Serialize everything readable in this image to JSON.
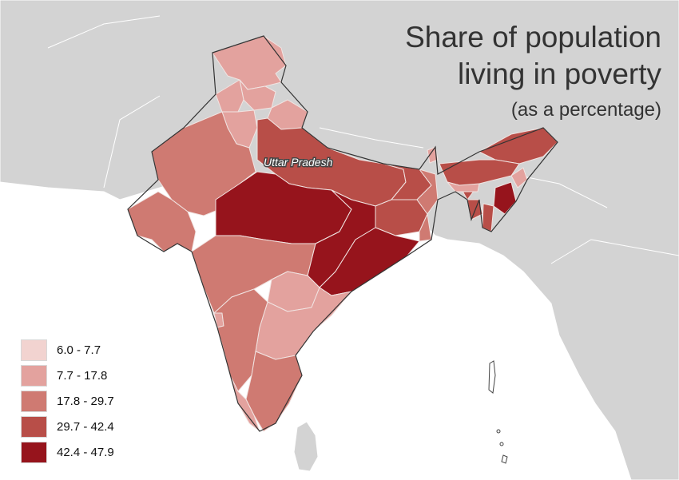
{
  "title": {
    "line1": "Share of population",
    "line2": "living in poverty",
    "subtitle": "(as a percentage)"
  },
  "map": {
    "highlighted_label": "Uttar Pradesh",
    "background_colors": {
      "sea": "#ffffff",
      "neighbour_land": "#d3d3d3",
      "border": "#333333"
    }
  },
  "legend": {
    "items": [
      {
        "label": "6.0 - 7.7",
        "color": "#f2d3d0"
      },
      {
        "label": "7.7 - 17.8",
        "color": "#e3a29e"
      },
      {
        "label": "17.8 - 29.7",
        "color": "#cf7a72"
      },
      {
        "label": "29.7 - 42.4",
        "color": "#b84e48"
      },
      {
        "label": "42.4 - 47.9",
        "color": "#96141c"
      }
    ]
  }
}
